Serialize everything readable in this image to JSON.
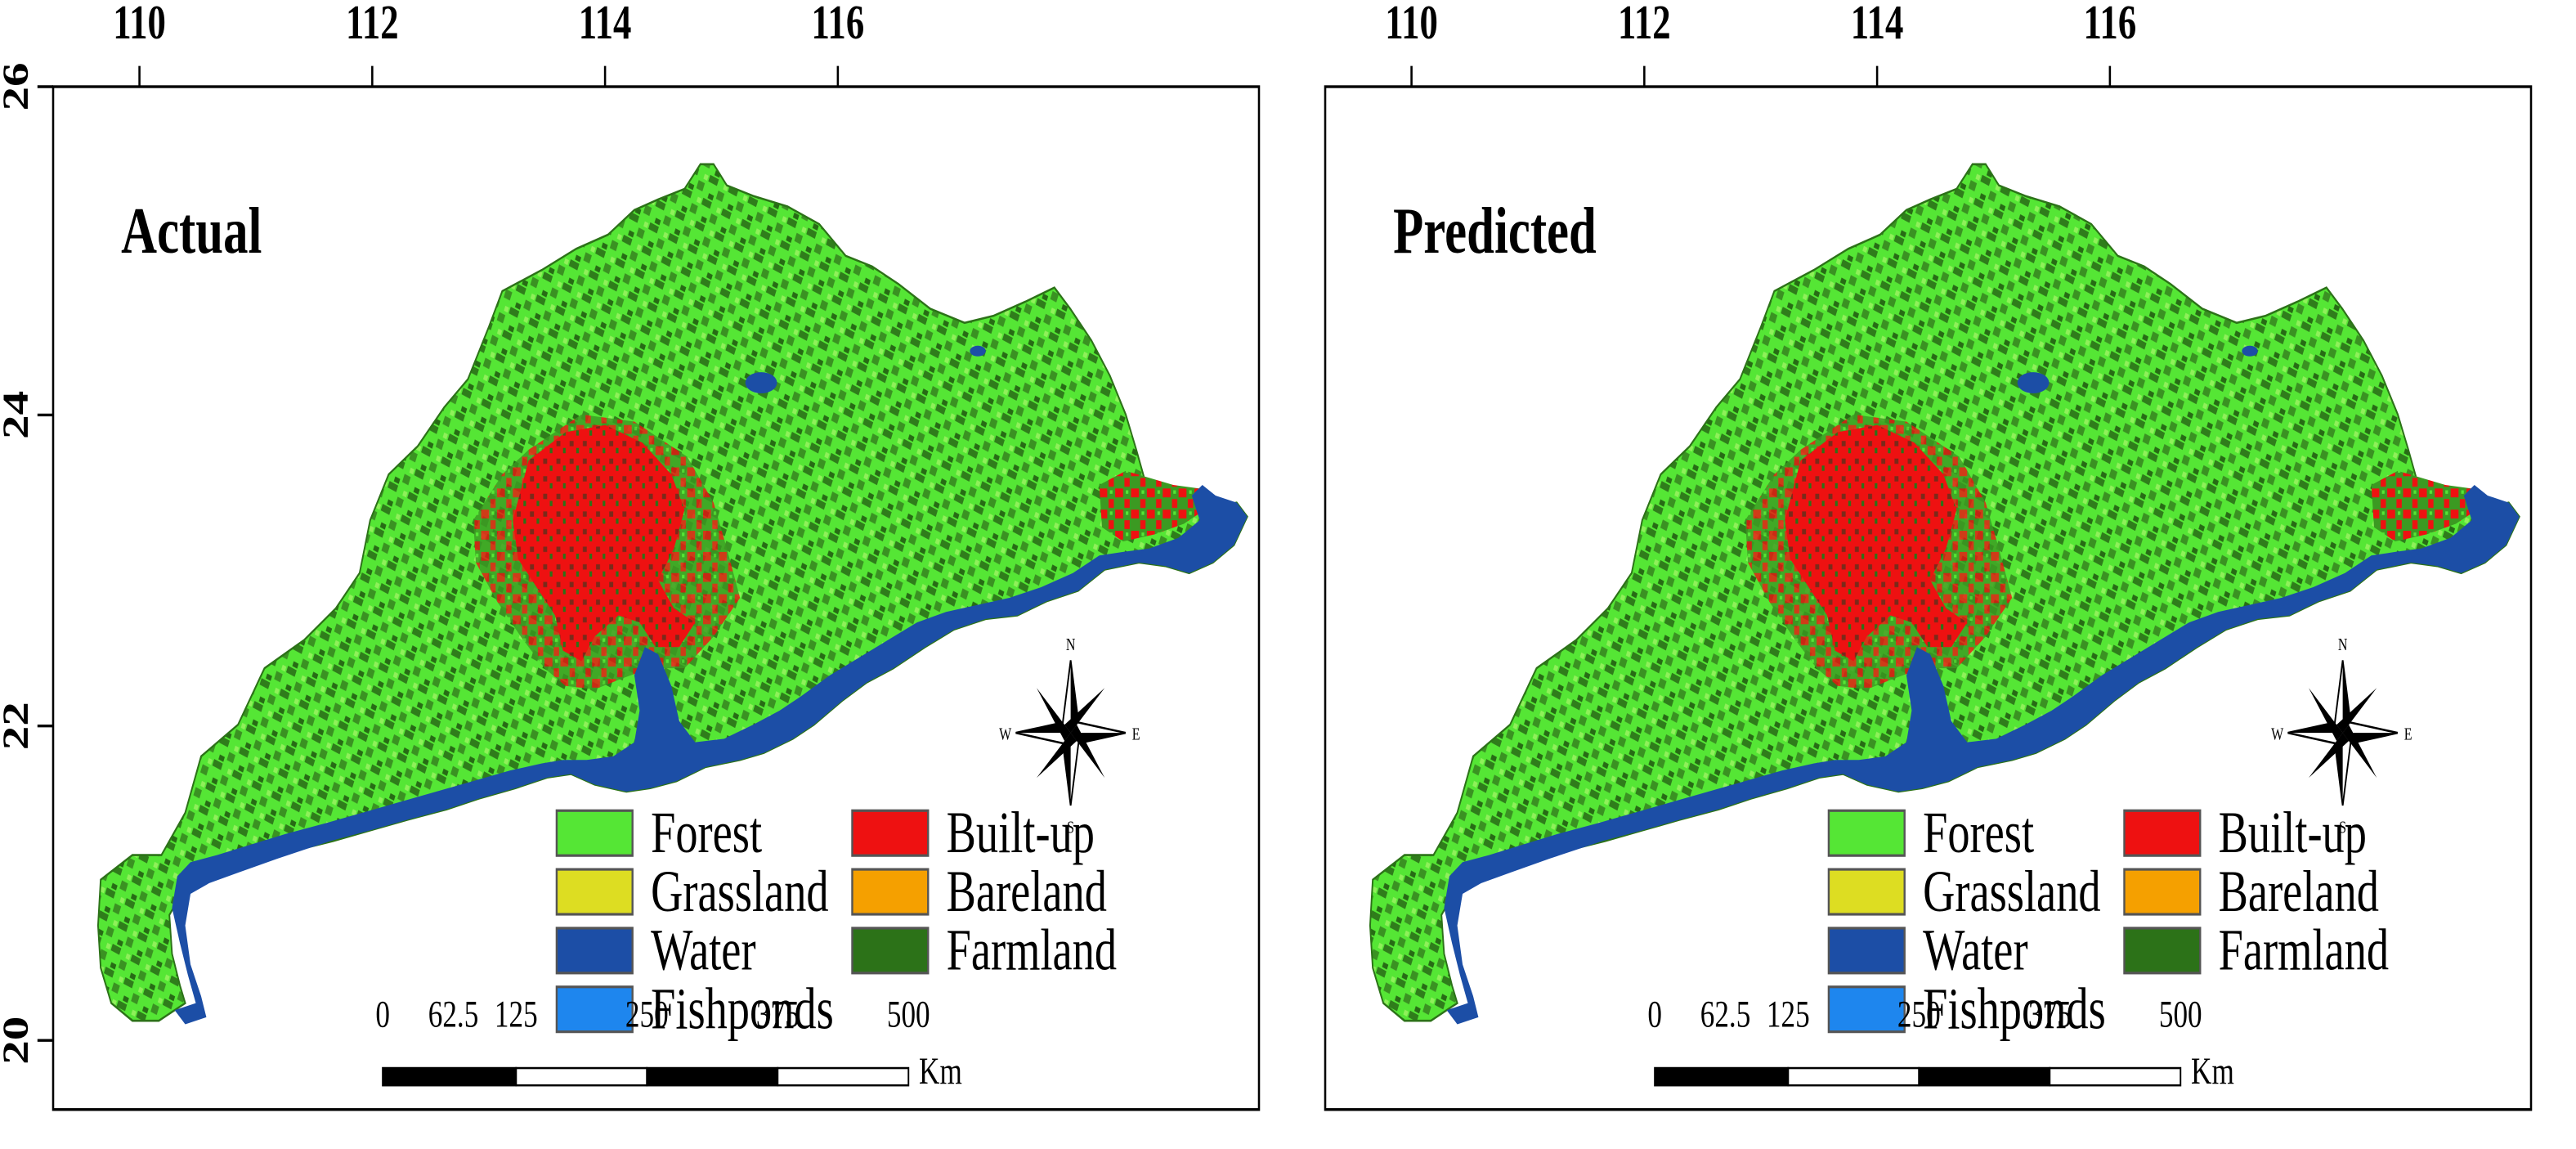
{
  "figure": {
    "panels": [
      {
        "id": "actual",
        "title": "Actual",
        "x_ticks": [
          "110",
          "112",
          "114",
          "116"
        ],
        "y_ticks": [
          "26",
          "24",
          "22",
          "20"
        ],
        "compass": {
          "n": "N",
          "e": "E",
          "s": "S",
          "w": "W"
        },
        "legend": [
          {
            "label": "Forest",
            "color": "#55e635"
          },
          {
            "label": "Built-up",
            "color": "#ee1111"
          },
          {
            "label": "Grassland",
            "color": "#dddd22"
          },
          {
            "label": "Bareland",
            "color": "#f5a000"
          },
          {
            "label": "Water",
            "color": "#1c4ea6"
          },
          {
            "label": "Farmland",
            "color": "#2c7218"
          },
          {
            "label": "Fishponds",
            "color": "#1e86ee"
          }
        ],
        "scale_labels": [
          "0",
          "62.5",
          "125",
          "250",
          "375",
          "500"
        ],
        "scale_unit": "Km"
      },
      {
        "id": "predicted",
        "title": "Predicted",
        "x_ticks": [
          "110",
          "112",
          "114",
          "116"
        ],
        "y_ticks": [],
        "compass": {
          "n": "N",
          "e": "E",
          "s": "S",
          "w": "W"
        },
        "legend": [
          {
            "label": "Forest",
            "color": "#55e635"
          },
          {
            "label": "Built-up",
            "color": "#ee1111"
          },
          {
            "label": "Grassland",
            "color": "#dddd22"
          },
          {
            "label": "Bareland",
            "color": "#f5a000"
          },
          {
            "label": "Water",
            "color": "#1c4ea6"
          },
          {
            "label": "Farmland",
            "color": "#2c7218"
          },
          {
            "label": "Fishponds",
            "color": "#1e86ee"
          }
        ],
        "scale_labels": [
          "0",
          "62.5",
          "125",
          "250",
          "375",
          "500"
        ],
        "scale_unit": "Km"
      }
    ]
  }
}
